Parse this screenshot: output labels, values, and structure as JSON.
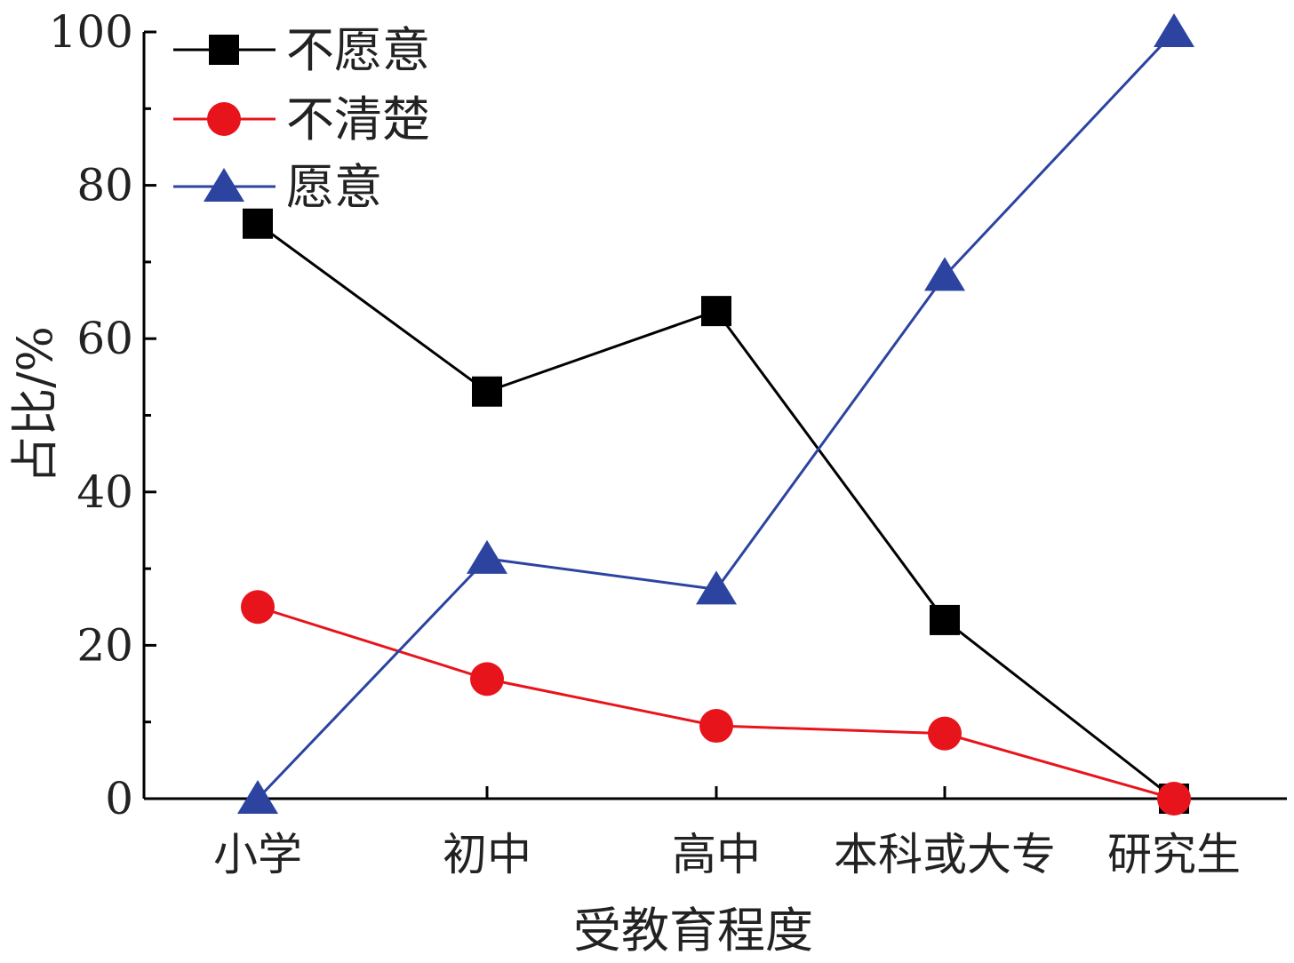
{
  "chart_data": {
    "type": "line",
    "title": "",
    "xlabel": "受教育程度",
    "ylabel": "占比/%",
    "categories": [
      "小学",
      "初中",
      "高中",
      "本科或大专",
      "研究生"
    ],
    "ylim": [
      0,
      100
    ],
    "yticks": [
      0,
      20,
      40,
      60,
      80,
      100
    ],
    "ytick_labels": [
      "0",
      "20",
      "40",
      "60",
      "80",
      "100"
    ],
    "grid": false,
    "legend_position": "top-left",
    "series": [
      {
        "name": "不愿意",
        "values": [
          75,
          53.1,
          63.6,
          23.3,
          0
        ],
        "color": "#000000",
        "marker": "square"
      },
      {
        "name": "不清楚",
        "values": [
          25,
          15.6,
          9.5,
          8.5,
          0
        ],
        "color": "#e8141c",
        "marker": "circle"
      },
      {
        "name": "愿意",
        "values": [
          0,
          31.3,
          27.3,
          68.2,
          100
        ],
        "color": "#2c44a0",
        "marker": "triangle"
      }
    ]
  }
}
